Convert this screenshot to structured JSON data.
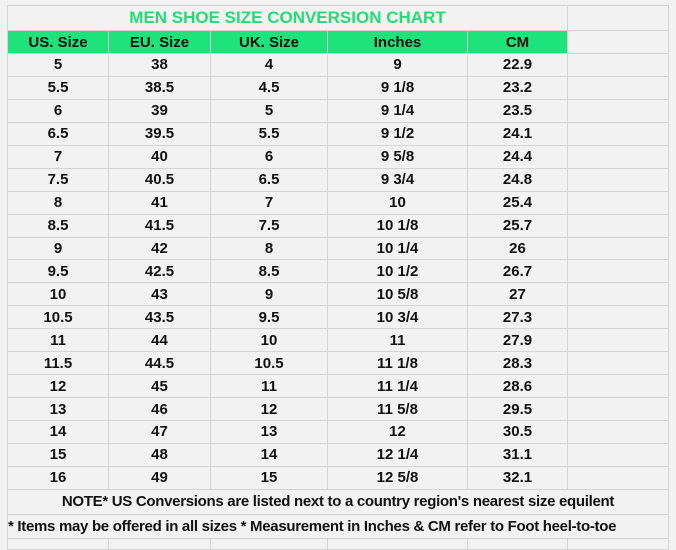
{
  "title": "MEN SHOE SIZE CONVERSION CHART",
  "columns": [
    "US. Size",
    "EU. Size",
    "UK. Size",
    "Inches",
    "CM"
  ],
  "rows": [
    [
      "5",
      "38",
      "4",
      "9",
      "22.9"
    ],
    [
      "5.5",
      "38.5",
      "4.5",
      "9 1/8",
      "23.2"
    ],
    [
      "6",
      "39",
      "5",
      "9 1/4",
      "23.5"
    ],
    [
      "6.5",
      "39.5",
      "5.5",
      "9 1/2",
      "24.1"
    ],
    [
      "7",
      "40",
      "6",
      "9 5/8",
      "24.4"
    ],
    [
      "7.5",
      "40.5",
      "6.5",
      "9 3/4",
      "24.8"
    ],
    [
      "8",
      "41",
      "7",
      "10",
      "25.4"
    ],
    [
      "8.5",
      "41.5",
      "7.5",
      "10 1/8",
      "25.7"
    ],
    [
      "9",
      "42",
      "8",
      "10 1/4",
      "26"
    ],
    [
      "9.5",
      "42.5",
      "8.5",
      "10 1/2",
      "26.7"
    ],
    [
      "10",
      "43",
      "9",
      "10 5/8",
      "27"
    ],
    [
      "10.5",
      "43.5",
      "9.5",
      "10 3/4",
      "27.3"
    ],
    [
      "11",
      "44",
      "10",
      "11",
      "27.9"
    ],
    [
      "11.5",
      "44.5",
      "10.5",
      "11 1/8",
      "28.3"
    ],
    [
      "12",
      "45",
      "11",
      "11 1/4",
      "28.6"
    ],
    [
      "13",
      "46",
      "12",
      "11 5/8",
      "29.5"
    ],
    [
      "14",
      "47",
      "13",
      "12",
      "30.5"
    ],
    [
      "15",
      "48",
      "14",
      "12 1/4",
      "31.1"
    ],
    [
      "16",
      "49",
      "15",
      "12 5/8",
      "32.1"
    ]
  ],
  "note": "NOTE* US Conversions are listed next to a country region's nearest size equilent",
  "note2": "* Items may be offered in all sizes * Measurement in Inches & CM refer to Foot heel-to-toe",
  "colors": {
    "title": "#22dd77",
    "header_bg": "#1ee27a",
    "background": "#f2f2f2",
    "grid": "#d4d4d4"
  }
}
